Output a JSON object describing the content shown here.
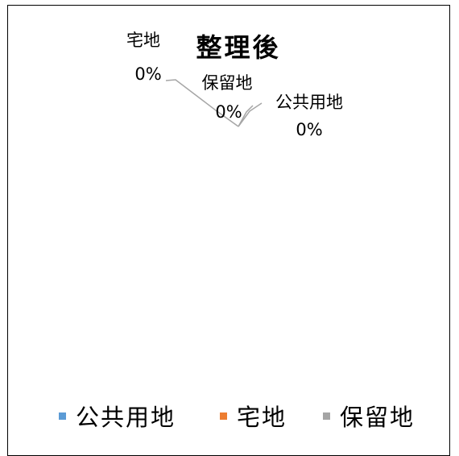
{
  "chart_data": {
    "type": "pie",
    "title": "整理後",
    "categories": [
      "公共用地",
      "宅地",
      "保留地"
    ],
    "values": [
      0,
      0,
      0
    ],
    "data_labels": [
      {
        "category": "公共用地",
        "value_text": "0%"
      },
      {
        "category": "宅地",
        "value_text": "0%"
      },
      {
        "category": "保留地",
        "value_text": "0%"
      }
    ],
    "colors": [
      "#5B9BD5",
      "#ED7D31",
      "#A5A5A5"
    ],
    "legend": "bottom",
    "leader_line_color": "#A6A6A6"
  }
}
